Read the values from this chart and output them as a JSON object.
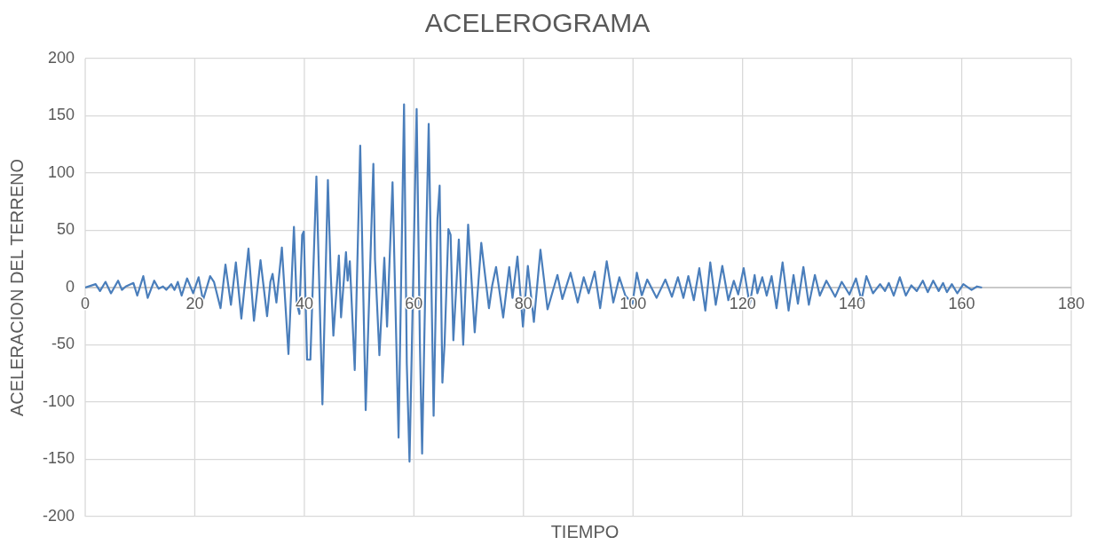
{
  "chart_data": {
    "type": "line",
    "title": "ACELEROGRAMA",
    "xlabel": "TIEMPO",
    "ylabel": "ACELERACION DEL TERRENO",
    "xlim": [
      0,
      180
    ],
    "xticks": [
      0,
      20,
      40,
      60,
      80,
      100,
      120,
      140,
      160,
      180
    ],
    "ylim": [
      -200,
      200
    ],
    "yticks": [
      -200,
      -150,
      -100,
      -50,
      0,
      50,
      100,
      150,
      200
    ],
    "grid": true,
    "legend": false,
    "marker": "none",
    "line_style": "solid",
    "series": [
      {
        "color": "#4a7ebb",
        "x": [
          0,
          1.9,
          2.7,
          3.7,
          4.7,
          6.0,
          6.7,
          7.4,
          8.8,
          9.5,
          10.6,
          11.4,
          12.6,
          13.4,
          14.2,
          14.8,
          15.7,
          16.3,
          16.9,
          17.6,
          18.6,
          19.7,
          20.7,
          21.5,
          22.8,
          23.5,
          24.7,
          25.6,
          26.6,
          27.5,
          28.5,
          29.8,
          30.8,
          32,
          33.2,
          33.8,
          34.2,
          34.9,
          35.9,
          37.1,
          38.1,
          38.6,
          39.1,
          39.6,
          39.9,
          40.5,
          41.1,
          42.2,
          43.3,
          44.3,
          44.8,
          45.3,
          46.3,
          46.7,
          47.6,
          47.9,
          48.3,
          49.2,
          50.2,
          51.2,
          52.6,
          52.9,
          53.7,
          54.6,
          55.1,
          56.1,
          57.2,
          58.2,
          58.7,
          59.2,
          60.5,
          61.1,
          61.5,
          62.3,
          62.7,
          63.6,
          64.3,
          64.7,
          65.2,
          65.6,
          66.3,
          66.7,
          67.2,
          68.2,
          69.0,
          69.9,
          71.1,
          72.3,
          73.7,
          74.3,
          75.0,
          76.3,
          77.4,
          78.0,
          78.9,
          79.9,
          80.8,
          81.9,
          83.1,
          84.4,
          86.2,
          87.1,
          88.6,
          89.9,
          91.0,
          91.9,
          93.0,
          94.0,
          95.2,
          96.4,
          97.5,
          98.6,
          99.9,
          100.7,
          101.6,
          102.6,
          104.3,
          105.9,
          107.1,
          108.2,
          109.2,
          110.1,
          111.1,
          112.1,
          113.2,
          114.1,
          115.1,
          116.3,
          117.4,
          118.4,
          119.2,
          120.2,
          121.3,
          122.2,
          122.7,
          123.6,
          124.4,
          125.3,
          126.2,
          127.3,
          128.4,
          129.3,
          130.1,
          131.1,
          132.1,
          133.2,
          134.1,
          135.3,
          136.9,
          138.1,
          139.5,
          140.7,
          141.7,
          142.6,
          143.8,
          145.1,
          146.0,
          146.7,
          147.6,
          148.7,
          149.8,
          150.8,
          151.8,
          152.9,
          153.8,
          154.8,
          155.8,
          156.6,
          157.3,
          158.2,
          159.2,
          160.3,
          161.8,
          162.8,
          163.7
        ],
        "values": [
          0,
          3,
          -3,
          5,
          -5,
          6,
          -2,
          1,
          4,
          -7,
          10,
          -9,
          6,
          -1,
          1,
          -2,
          3,
          -2,
          5,
          -7,
          8,
          -5,
          9,
          -11,
          10,
          5,
          -18,
          20,
          -15,
          22,
          -27,
          34,
          -29,
          24,
          -25,
          5,
          12,
          -13,
          35,
          -58,
          53,
          -13,
          -23,
          46,
          49,
          -63,
          -63,
          97,
          -102,
          94,
          14,
          -42,
          28,
          -26,
          31,
          6,
          23,
          -72,
          124,
          -107,
          108,
          24,
          -59,
          26,
          -34,
          92,
          -131,
          160,
          -66,
          -152,
          156,
          -51,
          -145,
          55,
          143,
          -112,
          60,
          89,
          -83,
          -49,
          51,
          46,
          -46,
          42,
          -50,
          55,
          -39,
          39,
          -18,
          2,
          18,
          -26,
          18,
          -9,
          27,
          -34,
          19,
          -30,
          33,
          -19,
          11,
          -10,
          13,
          -13,
          9,
          -5,
          14,
          -18,
          23,
          -13,
          9,
          -7,
          -14,
          13,
          -7,
          7,
          -9,
          7,
          -8,
          9,
          -9,
          10,
          -11,
          17,
          -20,
          22,
          -15,
          19,
          -11,
          6,
          -6,
          17,
          -15,
          11,
          -5,
          9,
          -7,
          10,
          -18,
          22,
          -20,
          11,
          -14,
          18,
          -15,
          11,
          -7,
          6,
          -8,
          5,
          -6,
          8,
          -11,
          10,
          -5,
          3,
          -3,
          4,
          -7,
          9,
          -7,
          2,
          -3,
          6,
          -4,
          6,
          -3,
          4,
          -4,
          3,
          -5,
          3,
          -2,
          1,
          0
        ]
      }
    ]
  }
}
